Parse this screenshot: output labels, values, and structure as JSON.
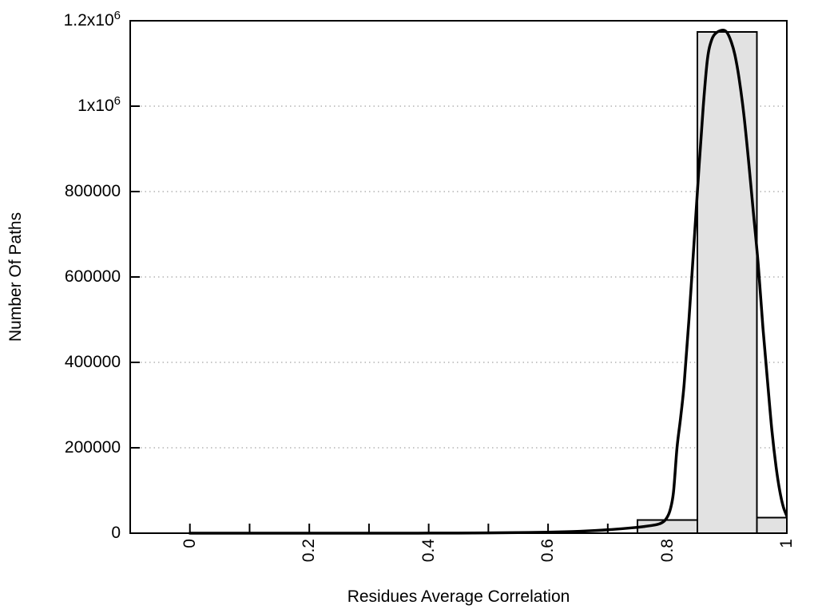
{
  "figure": {
    "background": "#ffffff",
    "axis_color": "#000000",
    "grid_color": "#b4b4b4",
    "bar_fill": "#e2e2e2",
    "bar_border": "#000000",
    "curve_color": "#000000"
  },
  "chart_data": {
    "type": "bar",
    "subtype": "histogram-with-fit-curve",
    "title": "",
    "xlabel": "Residues Average Correlation",
    "ylabel": "Number Of Paths",
    "xlim": [
      -0.1,
      1.0
    ],
    "ylim": [
      0,
      1200000
    ],
    "grid": "horizontal-dotted",
    "legend": "none",
    "x_ticks": {
      "labeled": [
        {
          "v": 0,
          "label": "0"
        },
        {
          "v": 0.2,
          "label": "0.2"
        },
        {
          "v": 0.4,
          "label": "0.4"
        },
        {
          "v": 0.6,
          "label": "0.6"
        },
        {
          "v": 0.8,
          "label": "0.8"
        },
        {
          "v": 1,
          "label": "1"
        }
      ],
      "marks": [
        0,
        0.1,
        0.2,
        0.3,
        0.4,
        0.5,
        0.6,
        0.7,
        0.8,
        0.9,
        1.0
      ]
    },
    "y_ticks": [
      {
        "v": 0,
        "label": "0"
      },
      {
        "v": 200000,
        "label": "200000"
      },
      {
        "v": 400000,
        "label": "400000"
      },
      {
        "v": 600000,
        "label": "600000"
      },
      {
        "v": 800000,
        "label": "800000"
      },
      {
        "v": 1000000,
        "label": "1x10^6"
      },
      {
        "v": 1200000,
        "label": "1.2x10^6"
      }
    ],
    "bars": {
      "bin_width": 0.1,
      "centers": [
        0.8,
        0.9,
        1.0
      ],
      "values": [
        31000,
        1174000,
        36000
      ],
      "clip_xmax": 1.0
    },
    "curve": {
      "name": "density-fit",
      "points": [
        [
          0.0,
          0
        ],
        [
          0.05,
          0
        ],
        [
          0.1,
          0
        ],
        [
          0.15,
          0
        ],
        [
          0.2,
          0
        ],
        [
          0.25,
          0
        ],
        [
          0.3,
          0
        ],
        [
          0.35,
          50
        ],
        [
          0.4,
          150
        ],
        [
          0.45,
          350
        ],
        [
          0.5,
          700
        ],
        [
          0.55,
          1300
        ],
        [
          0.6,
          2300
        ],
        [
          0.64,
          3800
        ],
        [
          0.68,
          6300
        ],
        [
          0.71,
          9000
        ],
        [
          0.74,
          12500
        ],
        [
          0.76,
          15500
        ],
        [
          0.78,
          19500
        ],
        [
          0.79,
          24000
        ],
        [
          0.797,
          32000
        ],
        [
          0.804,
          52000
        ],
        [
          0.81,
          95000
        ],
        [
          0.816,
          200000
        ],
        [
          0.822,
          270000
        ],
        [
          0.828,
          350000
        ],
        [
          0.836,
          500000
        ],
        [
          0.845,
          690000
        ],
        [
          0.853,
          860000
        ],
        [
          0.86,
          1000000
        ],
        [
          0.867,
          1110000
        ],
        [
          0.874,
          1155000
        ],
        [
          0.882,
          1172000
        ],
        [
          0.893,
          1178000
        ],
        [
          0.9,
          1172000
        ],
        [
          0.907,
          1150000
        ],
        [
          0.913,
          1120000
        ],
        [
          0.92,
          1065000
        ],
        [
          0.928,
          980000
        ],
        [
          0.936,
          870000
        ],
        [
          0.944,
          750000
        ],
        [
          0.952,
          630000
        ],
        [
          0.96,
          480000
        ],
        [
          0.968,
          350000
        ],
        [
          0.975,
          240000
        ],
        [
          0.982,
          155000
        ],
        [
          0.988,
          100000
        ],
        [
          0.994,
          62000
        ],
        [
          1.0,
          40000
        ]
      ]
    }
  }
}
